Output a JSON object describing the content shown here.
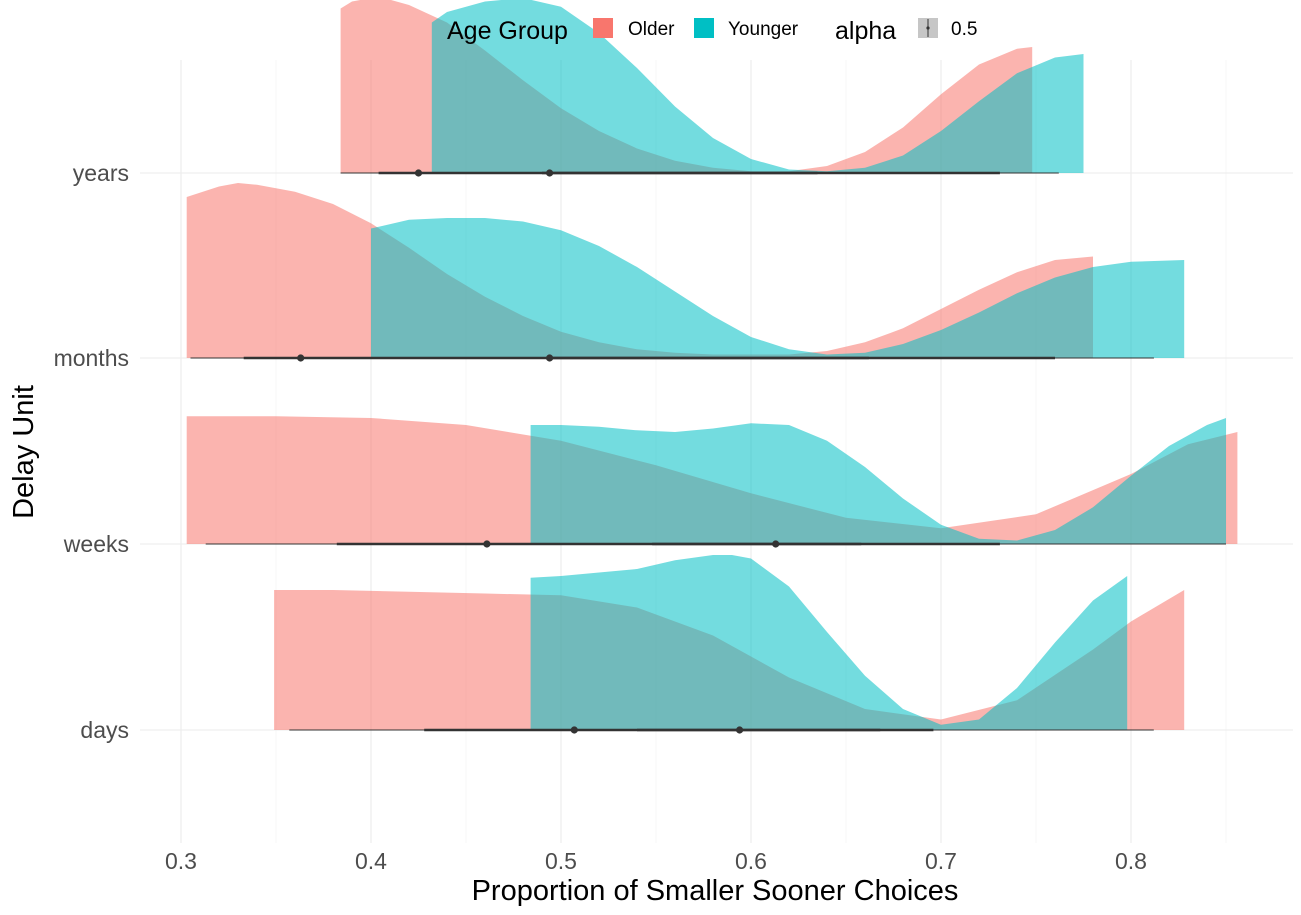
{
  "chart_data": {
    "type": "ridgeline-density",
    "xlabel": "Proportion of Smaller Sooner Choices",
    "ylabel": "Delay Unit",
    "xlim": [
      0.28,
      0.87
    ],
    "x_ticks": [
      0.3,
      0.4,
      0.5,
      0.6,
      0.7,
      0.8
    ],
    "x_tick_labels": [
      "0.3",
      "0.4",
      "0.5",
      "0.6",
      "0.7",
      "0.8"
    ],
    "categories": [
      "days",
      "weeks",
      "months",
      "years"
    ],
    "grid": true,
    "legend": {
      "position": "top",
      "fill_title": "Age Group",
      "fill_entries": [
        {
          "label": "Older",
          "color": "#F8766D"
        },
        {
          "label": "Younger",
          "color": "#00BFC4"
        }
      ],
      "alpha_title": "alpha",
      "alpha_entries": [
        {
          "label": "0.5"
        }
      ]
    },
    "series": [
      {
        "name": "Older",
        "color": "#F8766D",
        "groups": {
          "years": {
            "density_x": [
              0.384,
              0.39,
              0.4,
              0.41,
              0.42,
              0.44,
              0.46,
              0.48,
              0.5,
              0.52,
              0.54,
              0.56,
              0.58,
              0.6,
              0.62,
              0.64,
              0.66,
              0.68,
              0.7,
              0.72,
              0.74,
              0.748
            ],
            "density_y": [
              0.94,
              0.98,
              1.0,
              0.99,
              0.96,
              0.86,
              0.7,
              0.53,
              0.37,
              0.24,
              0.14,
              0.07,
              0.03,
              0.01,
              0.01,
              0.04,
              0.12,
              0.26,
              0.45,
              0.62,
              0.71,
              0.72
            ],
            "whisker": [
              0.384,
              0.748
            ],
            "box": [
              0.404,
              0.731
            ],
            "median": 0.425
          },
          "months": {
            "density_x": [
              0.303,
              0.32,
              0.33,
              0.34,
              0.36,
              0.38,
              0.4,
              0.42,
              0.44,
              0.46,
              0.48,
              0.5,
              0.52,
              0.54,
              0.56,
              0.58,
              0.6,
              0.62,
              0.64,
              0.66,
              0.68,
              0.7,
              0.72,
              0.74,
              0.76,
              0.78
            ],
            "density_y": [
              0.92,
              0.98,
              1.0,
              0.99,
              0.95,
              0.88,
              0.77,
              0.63,
              0.48,
              0.35,
              0.24,
              0.15,
              0.09,
              0.05,
              0.03,
              0.02,
              0.02,
              0.02,
              0.04,
              0.09,
              0.17,
              0.28,
              0.39,
              0.49,
              0.56,
              0.58
            ],
            "whisker": [
              0.305,
              0.812
            ],
            "box": [
              0.333,
              0.76
            ],
            "median": 0.363
          },
          "weeks": {
            "density_x": [
              0.303,
              0.35,
              0.4,
              0.45,
              0.5,
              0.55,
              0.6,
              0.65,
              0.7,
              0.75,
              0.8,
              0.83,
              0.856
            ],
            "density_y": [
              0.73,
              0.73,
              0.72,
              0.68,
              0.59,
              0.45,
              0.29,
              0.15,
              0.09,
              0.17,
              0.4,
              0.57,
              0.64
            ],
            "whisker": [
              0.313,
              0.837
            ],
            "box": [
              0.382,
              0.731
            ],
            "median": 0.461
          },
          "days": {
            "density_x": [
              0.349,
              0.38,
              0.42,
              0.46,
              0.5,
              0.54,
              0.58,
              0.62,
              0.66,
              0.7,
              0.74,
              0.78,
              0.8,
              0.828
            ],
            "density_y": [
              0.8,
              0.8,
              0.79,
              0.78,
              0.77,
              0.7,
              0.54,
              0.3,
              0.12,
              0.06,
              0.17,
              0.46,
              0.62,
              0.8
            ],
            "whisker": [
              0.357,
              0.812
            ],
            "box": [
              0.428,
              0.696
            ],
            "median": 0.507
          }
        }
      },
      {
        "name": "Younger",
        "color": "#00BFC4",
        "groups": {
          "years": {
            "density_x": [
              0.432,
              0.44,
              0.46,
              0.48,
              0.5,
              0.52,
              0.54,
              0.56,
              0.58,
              0.6,
              0.62,
              0.64,
              0.66,
              0.68,
              0.7,
              0.72,
              0.74,
              0.76,
              0.775
            ],
            "density_y": [
              0.86,
              0.92,
              0.98,
              1.0,
              0.95,
              0.8,
              0.6,
              0.38,
              0.2,
              0.08,
              0.02,
              0.01,
              0.03,
              0.1,
              0.24,
              0.41,
              0.57,
              0.66,
              0.68
            ],
            "whisker": [
              0.463,
              0.762
            ],
            "box": [
              0.49,
              0.635
            ],
            "median": 0.494
          },
          "months": {
            "density_x": [
              0.4,
              0.42,
              0.44,
              0.46,
              0.48,
              0.5,
              0.52,
              0.54,
              0.56,
              0.58,
              0.6,
              0.62,
              0.64,
              0.66,
              0.68,
              0.7,
              0.72,
              0.74,
              0.76,
              0.78,
              0.8,
              0.828
            ],
            "density_y": [
              0.74,
              0.79,
              0.8,
              0.8,
              0.78,
              0.73,
              0.64,
              0.52,
              0.38,
              0.24,
              0.12,
              0.05,
              0.02,
              0.03,
              0.08,
              0.16,
              0.26,
              0.37,
              0.46,
              0.52,
              0.55,
              0.56
            ],
            "whisker": [
              0.446,
              0.812
            ],
            "box": [
              0.494,
              0.662
            ],
            "median": 0.494
          },
          "weeks": {
            "density_x": [
              0.484,
              0.5,
              0.52,
              0.54,
              0.56,
              0.58,
              0.6,
              0.62,
              0.64,
              0.66,
              0.68,
              0.7,
              0.72,
              0.74,
              0.76,
              0.78,
              0.8,
              0.82,
              0.84,
              0.85
            ],
            "density_y": [
              0.68,
              0.68,
              0.67,
              0.65,
              0.64,
              0.66,
              0.69,
              0.68,
              0.59,
              0.44,
              0.26,
              0.11,
              0.03,
              0.02,
              0.08,
              0.21,
              0.39,
              0.56,
              0.68,
              0.72
            ],
            "whisker": [
              0.484,
              0.85
            ],
            "box": [
              0.548,
              0.658
            ],
            "median": 0.613
          },
          "days": {
            "density_x": [
              0.484,
              0.5,
              0.52,
              0.54,
              0.56,
              0.58,
              0.59,
              0.6,
              0.62,
              0.64,
              0.66,
              0.68,
              0.7,
              0.72,
              0.74,
              0.76,
              0.78,
              0.798
            ],
            "density_y": [
              0.87,
              0.88,
              0.9,
              0.92,
              0.97,
              1.0,
              1.0,
              0.98,
              0.82,
              0.56,
              0.31,
              0.12,
              0.03,
              0.06,
              0.24,
              0.5,
              0.74,
              0.88
            ],
            "whisker": [
              0.484,
              0.788
            ],
            "box": [
              0.54,
              0.668
            ],
            "median": 0.594
          }
        }
      }
    ]
  }
}
